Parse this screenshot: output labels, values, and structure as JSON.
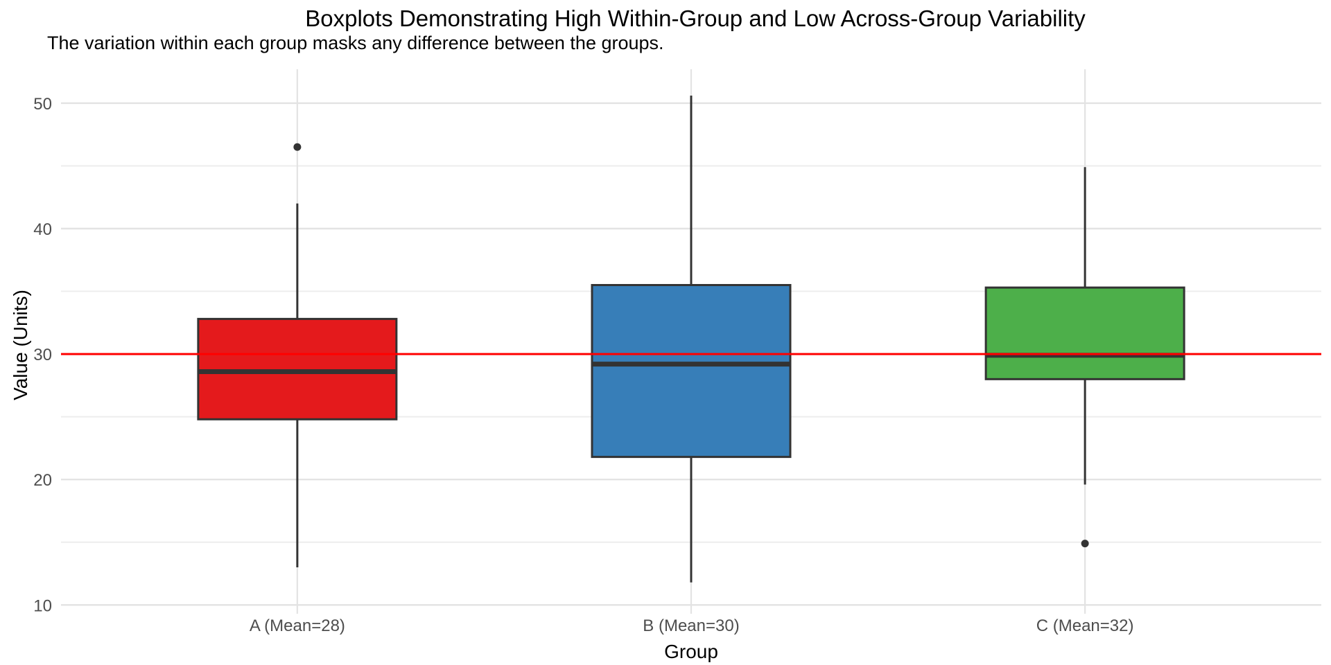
{
  "chart_data": {
    "type": "boxplot",
    "title": "Boxplots Demonstrating High Within-Group and Low Across-Group Variability",
    "subtitle": "The variation within each group masks any difference between the groups.",
    "xlabel": "Group",
    "ylabel": "Value (Units)",
    "ylim": [
      9.3,
      52.7
    ],
    "yticks_major": [
      10,
      20,
      30,
      40,
      50
    ],
    "yticks_minor": [
      15,
      25,
      35,
      45
    ],
    "grid": true,
    "legend": "none",
    "background": "#FFFFFF",
    "axis_text_color": "#4D4D4D",
    "stroke_color": "#333333",
    "gridline_major_color": "#E3E3E3",
    "gridline_minor_color": "#EDEDED",
    "reference_line": {
      "value": 30,
      "color": "#FF0000"
    },
    "categories": [
      "A (Mean=28)",
      "B (Mean=30)",
      "C (Mean=32)"
    ],
    "groups": [
      {
        "name": "A",
        "label": "A (Mean=28)",
        "color": "#E41A1C",
        "whisker_low": 13.0,
        "q1": 24.8,
        "median": 28.6,
        "q3": 32.8,
        "whisker_high": 42.0,
        "outliers": [
          46.5
        ]
      },
      {
        "name": "B",
        "label": "B (Mean=30)",
        "color": "#377EB8",
        "whisker_low": 11.8,
        "q1": 21.8,
        "median": 29.2,
        "q3": 35.5,
        "whisker_high": 50.6,
        "outliers": []
      },
      {
        "name": "C",
        "label": "C (Mean=32)",
        "color": "#4DAF4A",
        "whisker_low": 19.6,
        "q1": 28.0,
        "median": 29.9,
        "q3": 35.3,
        "whisker_high": 44.9,
        "outliers": [
          14.9
        ]
      }
    ]
  }
}
